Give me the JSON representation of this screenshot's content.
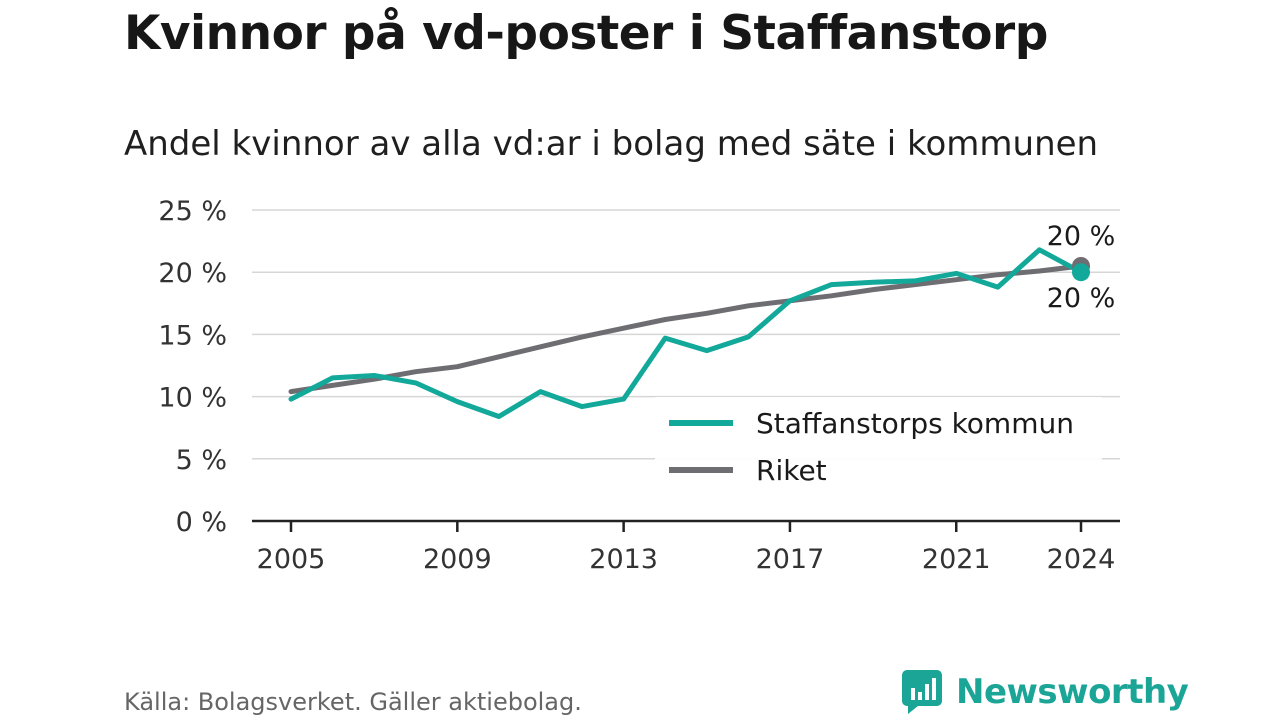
{
  "title": "Kvinnor på vd-poster i Staffanstorp",
  "subtitle": "Andel kvinnor av alla vd:ar i bolag med säte i kommunen",
  "source": "Källa: Bolagsverket. Gäller aktiebolag.",
  "brand": "Newsworthy",
  "colors": {
    "kommun": "#12a89a",
    "riket": "#6e6d72",
    "grid": "#d6d6d6",
    "axis": "#222222",
    "brand": "#1aa597"
  },
  "chart_data": {
    "type": "line",
    "x": [
      2005,
      2006,
      2007,
      2008,
      2009,
      2010,
      2011,
      2012,
      2013,
      2014,
      2015,
      2016,
      2017,
      2018,
      2019,
      2020,
      2021,
      2022,
      2023,
      2024
    ],
    "xticks": [
      "2005",
      "2009",
      "2013",
      "2017",
      "2021",
      "2024"
    ],
    "ylim": [
      0,
      25
    ],
    "yticks": [
      "0 %",
      "5 %",
      "10 %",
      "15 %",
      "20 %",
      "25 %"
    ],
    "grid": true,
    "legend_position": "bottom-right",
    "series": [
      {
        "name": "Staffanstorps kommun",
        "values": [
          9.8,
          11.5,
          11.7,
          11.1,
          9.6,
          8.4,
          10.4,
          9.2,
          9.8,
          14.7,
          13.7,
          14.8,
          17.7,
          19.0,
          19.2,
          19.3,
          19.9,
          18.8,
          21.8,
          20.0
        ],
        "end_label": "20 %"
      },
      {
        "name": "Riket",
        "values": [
          10.4,
          10.9,
          11.4,
          12.0,
          12.4,
          13.2,
          14.0,
          14.8,
          15.5,
          16.2,
          16.7,
          17.3,
          17.7,
          18.1,
          18.6,
          19.0,
          19.4,
          19.8,
          20.1,
          20.5
        ],
        "end_label": "20 %"
      }
    ]
  }
}
